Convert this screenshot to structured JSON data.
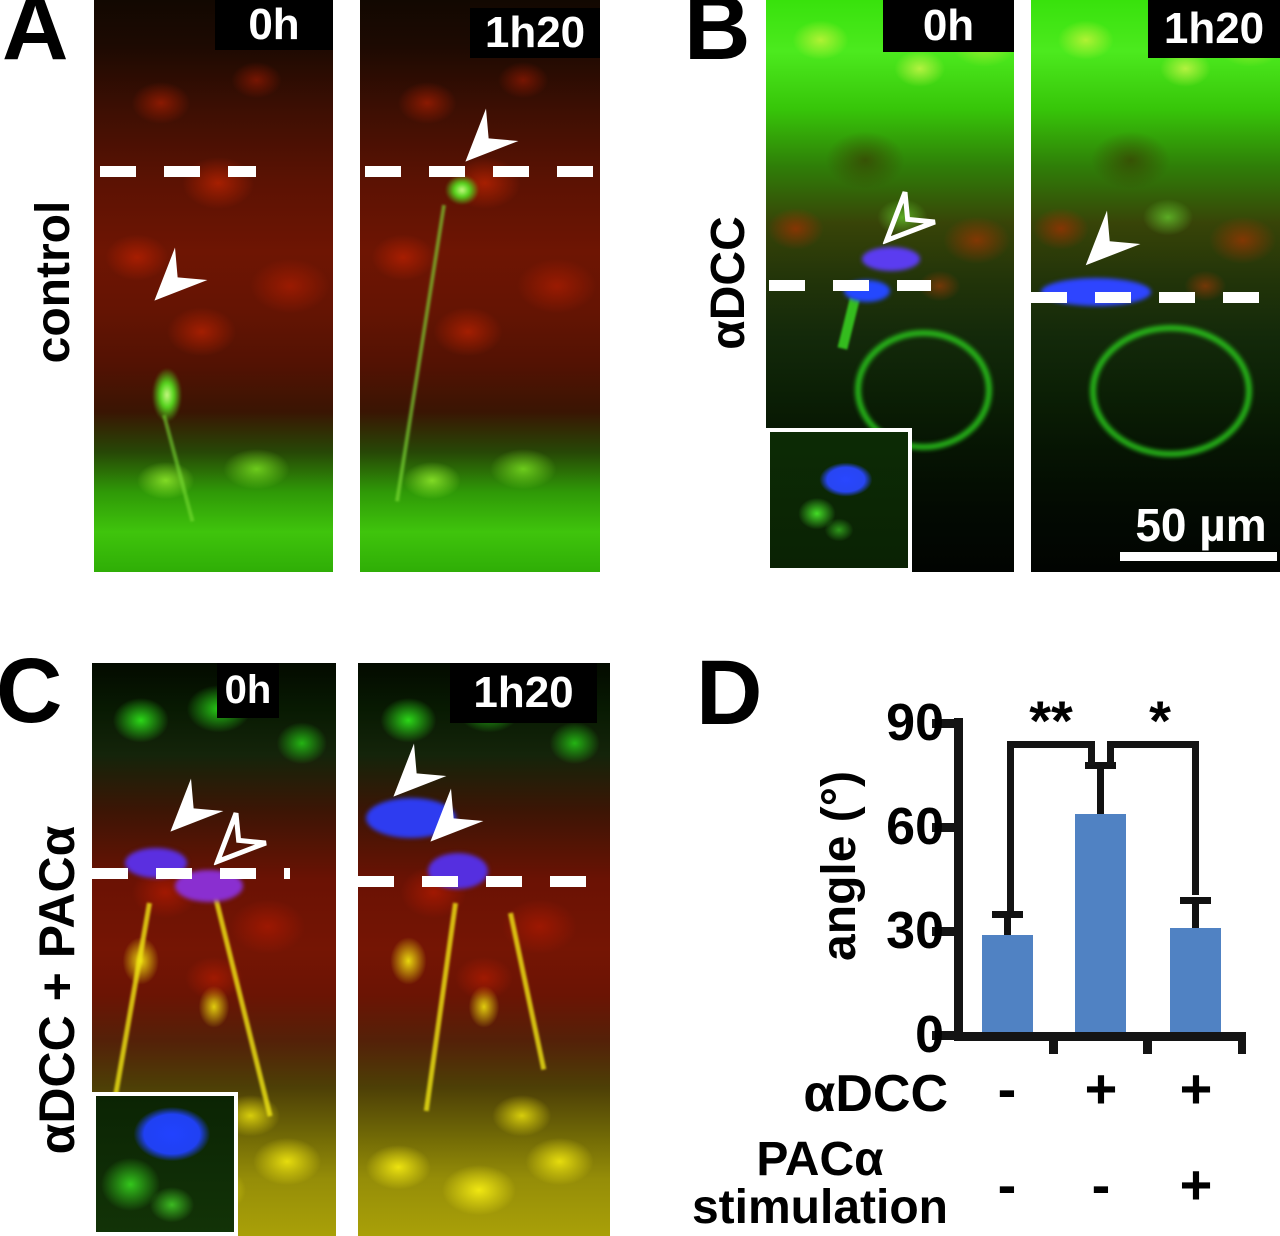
{
  "figure": {
    "panel_a": {
      "label": "A",
      "side_label": "control",
      "timepoints": [
        "0h",
        "1h20"
      ]
    },
    "panel_b": {
      "label": "B",
      "side_label": "αDCC",
      "timepoints": [
        "0h",
        "1h20"
      ],
      "scale_bar": "50 µm"
    },
    "panel_c": {
      "label": "C",
      "side_label": "αDCC + PACα",
      "timepoints": [
        "0h",
        "1h20"
      ]
    },
    "panel_d": {
      "label": "D"
    }
  },
  "icons": {
    "filled_arrowhead": "filled-arrowhead-icon",
    "open_arrowhead": "open-arrowhead-icon"
  },
  "colors": {
    "bar_blue": "#5082c3",
    "annotation_white": "#ffffff",
    "axis_black": "#141414"
  },
  "chart_data": {
    "type": "bar",
    "title": "",
    "xlabel": "",
    "ylabel": "angle (°)",
    "ylim": [
      0,
      90
    ],
    "yticks": [
      "0",
      "30",
      "60",
      "90"
    ],
    "grid": false,
    "legend": null,
    "bar_color": "#5082c3",
    "values": [
      28,
      63,
      30
    ],
    "errors_plus": [
      5,
      13,
      7
    ],
    "significance": [
      {
        "between": [
          "bar-1",
          "bar-2"
        ],
        "label": "**"
      },
      {
        "between": [
          "bar-2",
          "bar-3"
        ],
        "label": "*"
      }
    ],
    "condition_rows": [
      {
        "name": "αDCC",
        "values": [
          "-",
          "+",
          "+"
        ]
      },
      {
        "name_line1": "PACα",
        "name_line2": "stimulation",
        "values": [
          "-",
          "-",
          "+"
        ]
      }
    ]
  }
}
